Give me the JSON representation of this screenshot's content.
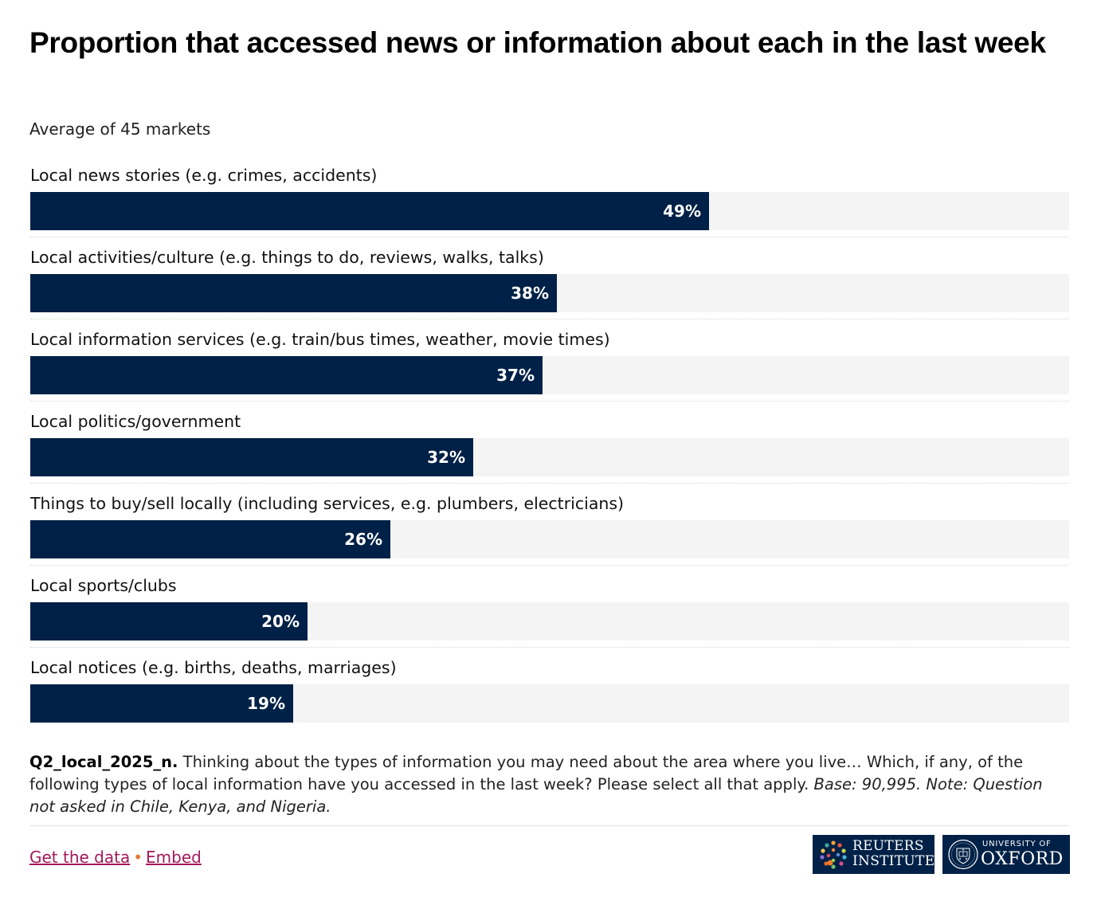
{
  "chart_data": {
    "type": "bar",
    "orientation": "horizontal",
    "title": "Proportion that accessed news or information about each in the last week",
    "subtitle": "Average of 45 markets",
    "categories": [
      "Local news stories (e.g. crimes, accidents)",
      "Local activities/culture (e.g. things to do, reviews, walks, talks)",
      "Local information services (e.g. train/bus times, weather, movie times)",
      "Local politics/government",
      "Things to buy/sell locally (including services, e.g. plumbers, electricians)",
      "Local sports/clubs",
      "Local notices (e.g. births, deaths, marriages)"
    ],
    "values": [
      49,
      38,
      37,
      32,
      26,
      20,
      19
    ],
    "value_labels": [
      "49%",
      "38%",
      "37%",
      "32%",
      "26%",
      "20%",
      "19%"
    ],
    "xlim": [
      0,
      75
    ],
    "unit": "%",
    "grid": false,
    "legend": "none",
    "colors": {
      "bar": "#002147",
      "track": "#f4f4f4"
    }
  },
  "footnote": {
    "question_id": "Q2_local_2025_n.",
    "question_text": "Thinking about the types of information you may need about the area where you live… Which, if any, of the following types of local information have you accessed in the last week? Please select all that apply.",
    "base_note": "Base: 90,995. Note: Question not asked in Chile, Kenya, and Nigeria."
  },
  "footer": {
    "get_data_label": "Get the data",
    "separator": "•",
    "embed_label": "Embed",
    "link_color": "#a3195b"
  },
  "logos": {
    "reuters": {
      "line1": "REUTERS",
      "line2": "INSTITUTE",
      "icon": "reuters-dots-icon"
    },
    "oxford": {
      "line1": "UNIVERSITY OF",
      "line2": "OXFORD",
      "icon": "oxford-crest-icon"
    }
  }
}
